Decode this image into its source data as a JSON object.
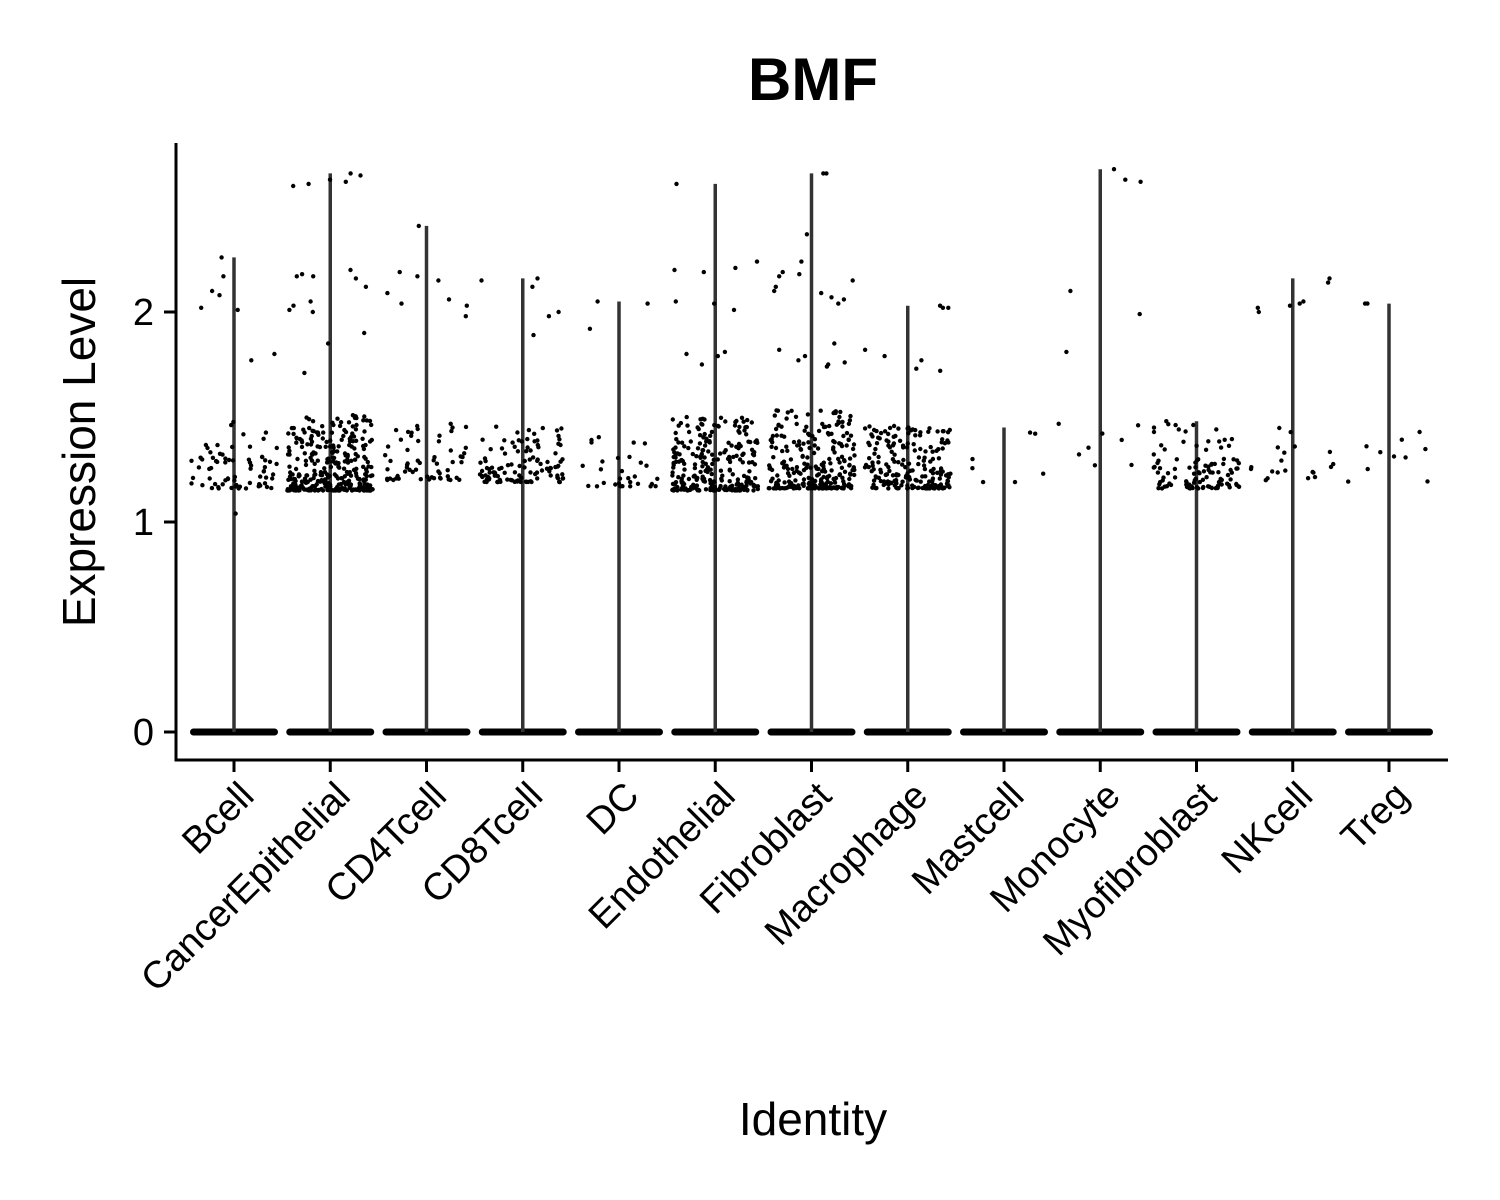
{
  "chart_data": {
    "type": "violin",
    "title": "BMF",
    "xlabel": "Identity",
    "ylabel": "Expression Level",
    "ylim": [
      -0.14,
      2.8
    ],
    "y_ticks": [
      0,
      1,
      2
    ],
    "grid": false,
    "legend": "none",
    "point_color": "#000000",
    "violin_color": "#333333",
    "categories": [
      "Bcell",
      "CancerEpithelial",
      "CD4Tcell",
      "CD8Tcell",
      "DC",
      "Endothelial",
      "Fibroblast",
      "Macrophage",
      "Mastcell",
      "Monocyte",
      "Myofibroblast",
      "NKcell",
      "Treg"
    ],
    "series": [
      {
        "category": "Bcell",
        "max": 2.26,
        "cluster": [
          1.16,
          1.48
        ],
        "cluster_n": 70,
        "outliers": [
          2.26,
          2.17,
          2.1,
          2.08,
          2.02,
          2.01,
          1.8,
          1.77,
          1.04
        ]
      },
      {
        "category": "CancerEpithelial",
        "max": 2.66,
        "cluster": [
          1.15,
          1.51
        ],
        "cluster_n": 320,
        "outliers": [
          2.66,
          2.65,
          2.63,
          2.62,
          2.61,
          2.6,
          2.2,
          2.18,
          2.17,
          2.17,
          2.16,
          2.12,
          2.05,
          2.03,
          2.01,
          2.0,
          1.9,
          1.85,
          1.71
        ]
      },
      {
        "category": "CD4Tcell",
        "max": 2.41,
        "cluster": [
          1.2,
          1.47
        ],
        "cluster_n": 60,
        "outliers": [
          2.41,
          2.19,
          2.17,
          2.15,
          2.09,
          2.06,
          2.04,
          2.03,
          1.98
        ]
      },
      {
        "category": "CD8Tcell",
        "max": 2.16,
        "cluster": [
          1.19,
          1.47
        ],
        "cluster_n": 110,
        "outliers": [
          2.16,
          2.15,
          2.12,
          2.0,
          1.98,
          1.89
        ]
      },
      {
        "category": "DC",
        "max": 2.05,
        "cluster": [
          1.17,
          1.42
        ],
        "cluster_n": 30,
        "outliers": [
          2.05,
          2.04,
          1.92
        ]
      },
      {
        "category": "Endothelial",
        "max": 2.61,
        "cluster": [
          1.15,
          1.5
        ],
        "cluster_n": 260,
        "outliers": [
          2.61,
          2.24,
          2.21,
          2.2,
          2.19,
          2.05,
          2.04,
          2.01,
          1.81,
          1.8,
          1.79,
          1.75
        ]
      },
      {
        "category": "Fibroblast",
        "max": 2.66,
        "cluster": [
          1.16,
          1.54
        ],
        "cluster_n": 260,
        "outliers": [
          2.66,
          2.66,
          2.37,
          2.24,
          2.19,
          2.18,
          2.17,
          2.15,
          2.12,
          2.1,
          2.09,
          2.07,
          2.06,
          2.04,
          1.85,
          1.82,
          1.79,
          1.77,
          1.76,
          1.75,
          1.74,
          1.53
        ]
      },
      {
        "category": "Macrophage",
        "max": 2.03,
        "cluster": [
          1.16,
          1.46
        ],
        "cluster_n": 200,
        "outliers": [
          2.03,
          2.02,
          2.02,
          1.82,
          1.79,
          1.77,
          1.73,
          1.72
        ]
      },
      {
        "category": "Mastcell",
        "max": 1.45,
        "cluster": [
          1.19,
          1.45
        ],
        "cluster_n": 7,
        "outliers": []
      },
      {
        "category": "Monocyte",
        "max": 2.68,
        "cluster": [
          1.27,
          1.48
        ],
        "cluster_n": 8,
        "outliers": [
          2.68,
          2.63,
          2.62,
          2.1,
          1.99,
          1.81
        ]
      },
      {
        "category": "Myofibroblast",
        "max": 1.48,
        "cluster": [
          1.16,
          1.48
        ],
        "cluster_n": 110,
        "outliers": []
      },
      {
        "category": "NKcell",
        "max": 2.16,
        "cluster": [
          1.19,
          1.46
        ],
        "cluster_n": 20,
        "outliers": [
          2.16,
          2.14,
          2.05,
          2.04,
          2.03,
          2.02,
          2.0
        ]
      },
      {
        "category": "Treg",
        "max": 2.04,
        "cluster": [
          1.19,
          1.48
        ],
        "cluster_n": 10,
        "outliers": [
          2.04,
          2.04
        ]
      }
    ]
  }
}
